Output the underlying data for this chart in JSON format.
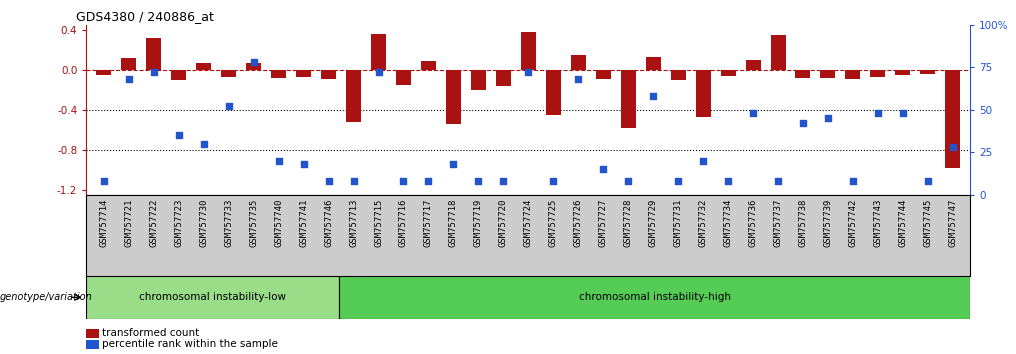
{
  "title": "GDS4380 / 240886_at",
  "samples": [
    "GSM757714",
    "GSM757721",
    "GSM757722",
    "GSM757723",
    "GSM757730",
    "GSM757733",
    "GSM757735",
    "GSM757740",
    "GSM757741",
    "GSM757746",
    "GSM757713",
    "GSM757715",
    "GSM757716",
    "GSM757717",
    "GSM757718",
    "GSM757719",
    "GSM757720",
    "GSM757724",
    "GSM757725",
    "GSM757726",
    "GSM757727",
    "GSM757728",
    "GSM757729",
    "GSM757731",
    "GSM757732",
    "GSM757734",
    "GSM757736",
    "GSM757737",
    "GSM757738",
    "GSM757739",
    "GSM757742",
    "GSM757743",
    "GSM757744",
    "GSM757745",
    "GSM757747"
  ],
  "bar_values": [
    -0.05,
    0.12,
    0.32,
    -0.1,
    0.07,
    -0.07,
    0.07,
    -0.08,
    -0.07,
    -0.09,
    -0.52,
    0.36,
    -0.15,
    0.09,
    -0.54,
    -0.2,
    -0.16,
    0.38,
    -0.45,
    0.15,
    -0.09,
    -0.58,
    0.13,
    -0.1,
    -0.47,
    -0.06,
    0.1,
    0.35,
    -0.08,
    -0.08,
    -0.09,
    -0.07,
    -0.05,
    -0.04,
    -0.98
  ],
  "dot_values": [
    8,
    68,
    72,
    35,
    30,
    52,
    78,
    20,
    18,
    8,
    8,
    72,
    8,
    8,
    18,
    8,
    8,
    72,
    8,
    68,
    15,
    8,
    58,
    8,
    20,
    8,
    48,
    8,
    42,
    45,
    8,
    48,
    48,
    8,
    28
  ],
  "bar_color": "#aa1111",
  "dot_color": "#2255cc",
  "background_color": "#ffffff",
  "ylim_left": [
    -1.25,
    0.45
  ],
  "ylim_right": [
    0,
    100
  ],
  "yticks_left": [
    0.4,
    0.0,
    -0.4,
    -0.8,
    -1.2
  ],
  "yticks_right": [
    0,
    25,
    50,
    75,
    100
  ],
  "dotted_lines": [
    -0.4,
    -0.8
  ],
  "group1_label": "chromosomal instability-low",
  "group2_label": "chromosomal instability-high",
  "group1_count": 10,
  "group2_count": 25,
  "group1_color": "#99dd88",
  "group2_color": "#55cc55",
  "genotype_label": "genotype/variation",
  "legend_bar_label": "transformed count",
  "legend_dot_label": "percentile rank within the sample",
  "right_axis_color": "#2255cc",
  "left_axis_color": "#aa1111",
  "xticklabel_bg": "#cccccc"
}
